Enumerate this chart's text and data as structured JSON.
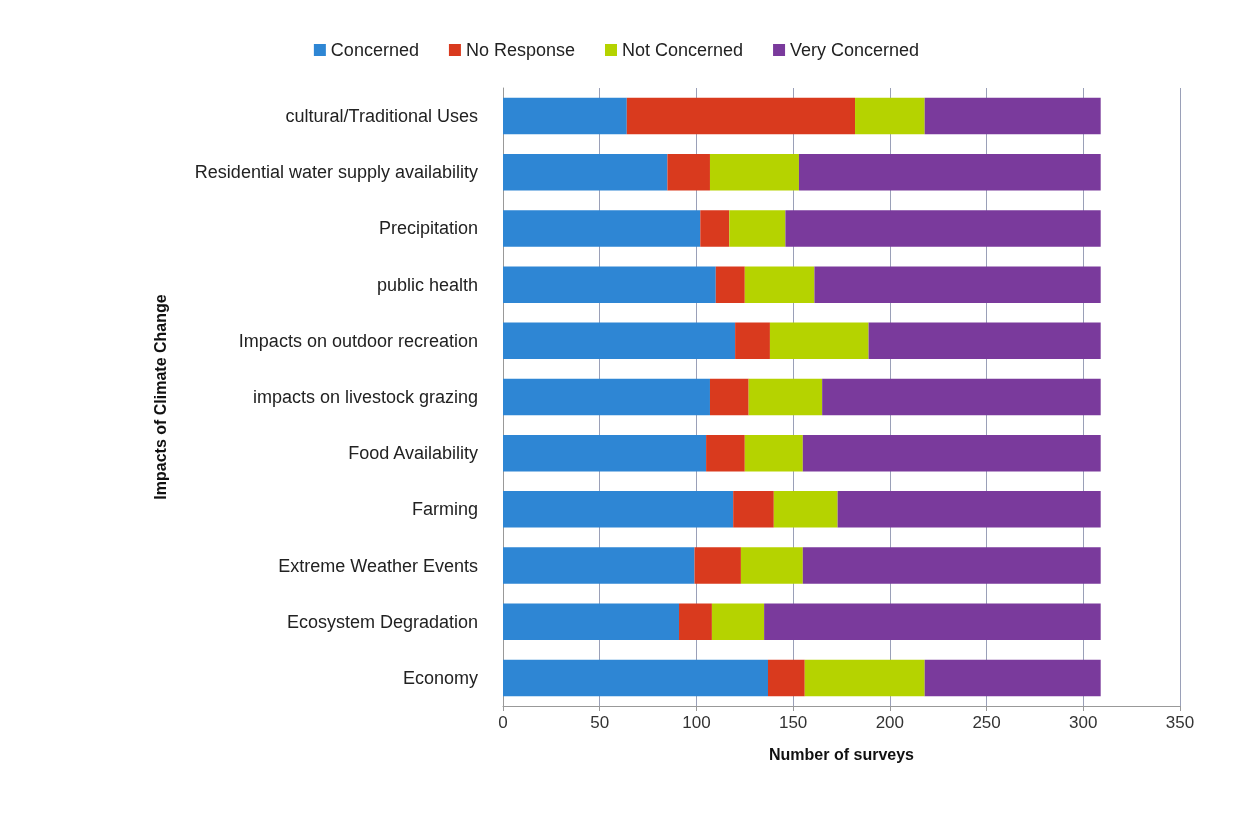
{
  "chart_data": {
    "type": "bar",
    "orientation": "horizontal",
    "stacked": true,
    "xlabel": "Number of surveys",
    "ylabel": "Impacts of Climate Change",
    "categories": [
      "cultural/Traditional Uses",
      "Residential water supply availability",
      "Precipitation",
      "public health",
      "Impacts on outdoor recreation",
      "impacts on livestock grazing",
      "Food Availability",
      "Farming",
      "Extreme Weather Events",
      "Ecosystem Degradation",
      "Economy"
    ],
    "series": [
      {
        "name": "Concerned",
        "color": "#2e86d4",
        "values": [
          64,
          85,
          102,
          110,
          120,
          107,
          105,
          119,
          99,
          91,
          137
        ]
      },
      {
        "name": "No Response",
        "color": "#d93a1e",
        "values": [
          118,
          22,
          15,
          15,
          18,
          20,
          20,
          21,
          24,
          17,
          19
        ]
      },
      {
        "name": "Not Concerned",
        "color": "#b5d300",
        "values": [
          36,
          46,
          29,
          36,
          51,
          38,
          30,
          33,
          32,
          27,
          62
        ]
      },
      {
        "name": "Very Concerned",
        "color": "#7a3a9c",
        "values": [
          91,
          156,
          163,
          148,
          120,
          144,
          154,
          136,
          154,
          174,
          91
        ]
      }
    ],
    "xlim": [
      0,
      350
    ],
    "xticks": [
      0,
      50,
      100,
      150,
      200,
      250,
      300,
      350
    ],
    "grid": "x",
    "legend": "top"
  }
}
